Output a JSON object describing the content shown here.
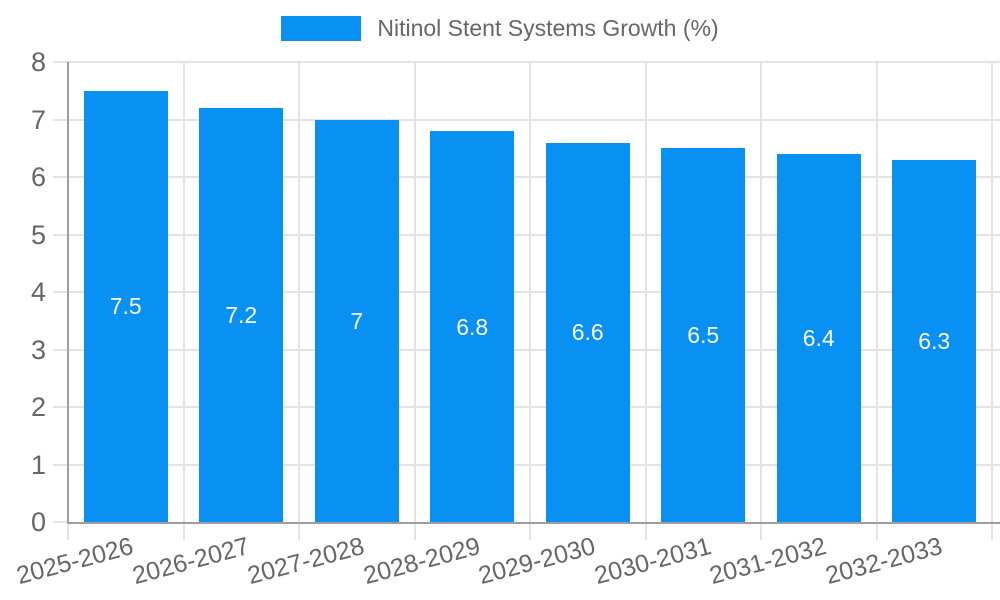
{
  "legend": {
    "label": "Nitinol Stent Systems Growth (%)"
  },
  "colors": {
    "bar": "#0890f2",
    "axis_text": "#666666",
    "value_label": "#ffffff",
    "grid": "#e3e3e3",
    "axis_line": "#9e9e9e",
    "background": "#ffffff"
  },
  "chart_data": {
    "type": "bar",
    "title": "Nitinol Stent Systems Growth (%)",
    "categories": [
      "2025-2026",
      "2026-2027",
      "2027-2028",
      "2028-2029",
      "2029-2030",
      "2030-2031",
      "2031-2032",
      "2032-2033"
    ],
    "values": [
      7.5,
      7.2,
      7,
      6.8,
      6.6,
      6.5,
      6.4,
      6.3
    ],
    "value_labels": [
      "7.5",
      "7.2",
      "7",
      "6.8",
      "6.6",
      "6.5",
      "6.4",
      "6.3"
    ],
    "ytick_labels": [
      "0",
      "1",
      "2",
      "3",
      "4",
      "5",
      "6",
      "7",
      "8"
    ],
    "xlabel": "",
    "ylabel": "",
    "ylim": [
      0,
      8
    ],
    "ytick_step": 1,
    "grid": true,
    "legend_position": "top",
    "bar_color": "#0890f2",
    "value_label_color": "#ffffff"
  }
}
